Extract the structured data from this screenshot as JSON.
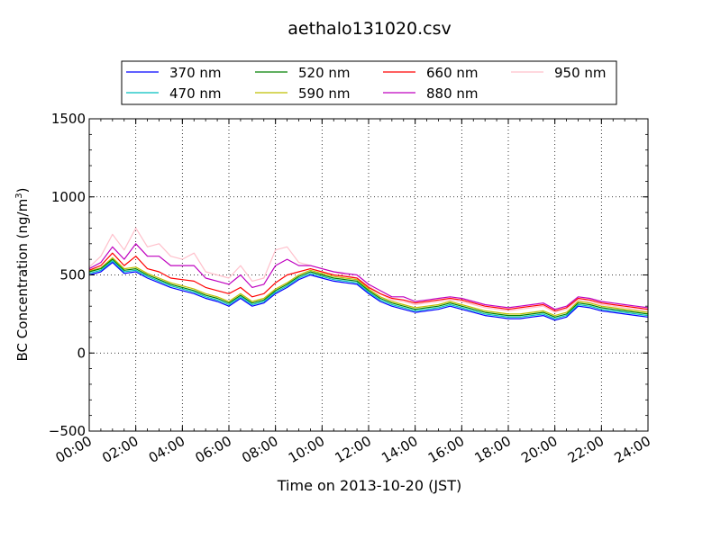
{
  "chart_data": {
    "type": "line",
    "title": "aethalo131020.csv",
    "xlabel": "Time on 2013-10-20 (JST)",
    "ylabel": "BC Concentration (ng/m",
    "ylabel_sup": "3",
    "ylabel_end": ")",
    "xlim": [
      "00:00",
      "24:00"
    ],
    "ylim": [
      -500,
      1500
    ],
    "x_ticks": [
      "00:00",
      "02:00",
      "04:00",
      "06:00",
      "08:00",
      "10:00",
      "12:00",
      "14:00",
      "16:00",
      "18:00",
      "20:00",
      "22:00",
      "24:00"
    ],
    "y_ticks": [
      "−500",
      "0",
      "500",
      "1000",
      "1500"
    ],
    "grid": true,
    "legend_position": "top, above plot",
    "x": [
      "00:00",
      "00:30",
      "01:00",
      "01:30",
      "02:00",
      "02:30",
      "03:00",
      "03:30",
      "04:00",
      "04:30",
      "05:00",
      "05:30",
      "06:00",
      "06:30",
      "07:00",
      "07:30",
      "08:00",
      "08:30",
      "09:00",
      "09:30",
      "10:00",
      "10:30",
      "11:00",
      "11:30",
      "12:00",
      "12:30",
      "13:00",
      "13:30",
      "14:00",
      "14:30",
      "15:00",
      "15:30",
      "16:00",
      "16:30",
      "17:00",
      "17:30",
      "18:00",
      "18:30",
      "19:00",
      "19:30",
      "20:00",
      "20:30",
      "21:00",
      "21:30",
      "22:00",
      "22:30",
      "23:00",
      "23:30",
      "24:00"
    ],
    "series": [
      {
        "name": "370 nm",
        "color": "#0000ff",
        "values": [
          500,
          520,
          580,
          510,
          520,
          480,
          450,
          420,
          400,
          380,
          350,
          330,
          300,
          350,
          300,
          320,
          380,
          420,
          470,
          500,
          480,
          460,
          450,
          440,
          380,
          330,
          300,
          280,
          260,
          270,
          280,
          300,
          280,
          260,
          240,
          230,
          220,
          220,
          230,
          240,
          210,
          230,
          300,
          290,
          270,
          260,
          250,
          240,
          230
        ]
      },
      {
        "name": "470 nm",
        "color": "#00bfbf",
        "values": [
          510,
          530,
          590,
          520,
          530,
          490,
          460,
          430,
          410,
          390,
          360,
          340,
          310,
          360,
          310,
          330,
          390,
          430,
          480,
          510,
          490,
          470,
          460,
          450,
          390,
          340,
          310,
          290,
          270,
          280,
          290,
          310,
          290,
          270,
          250,
          240,
          230,
          230,
          240,
          250,
          220,
          240,
          310,
          300,
          280,
          270,
          260,
          250,
          240
        ]
      },
      {
        "name": "520 nm",
        "color": "#008000",
        "values": [
          520,
          540,
          600,
          530,
          540,
          500,
          470,
          440,
          420,
          400,
          370,
          350,
          320,
          370,
          320,
          340,
          400,
          440,
          490,
          520,
          500,
          480,
          470,
          460,
          400,
          350,
          320,
          300,
          280,
          290,
          300,
          320,
          300,
          280,
          260,
          250,
          240,
          240,
          250,
          260,
          230,
          250,
          320,
          310,
          290,
          280,
          270,
          260,
          250
        ]
      },
      {
        "name": "590 nm",
        "color": "#bfbf00",
        "values": [
          525,
          545,
          610,
          540,
          550,
          510,
          480,
          450,
          430,
          410,
          380,
          360,
          330,
          380,
          330,
          350,
          410,
          450,
          500,
          530,
          510,
          490,
          480,
          470,
          410,
          360,
          330,
          310,
          290,
          300,
          310,
          330,
          310,
          290,
          270,
          260,
          250,
          250,
          260,
          270,
          240,
          260,
          330,
          320,
          300,
          290,
          280,
          270,
          260
        ]
      },
      {
        "name": "660 nm",
        "color": "#ff0000",
        "values": [
          530,
          560,
          640,
          560,
          620,
          540,
          520,
          480,
          470,
          460,
          420,
          400,
          380,
          420,
          360,
          380,
          450,
          500,
          520,
          540,
          520,
          500,
          490,
          480,
          420,
          380,
          350,
          340,
          320,
          330,
          340,
          350,
          340,
          320,
          300,
          290,
          280,
          290,
          300,
          310,
          270,
          290,
          350,
          340,
          320,
          310,
          300,
          290,
          280
        ]
      },
      {
        "name": "880 nm",
        "color": "#bf00bf",
        "values": [
          540,
          580,
          680,
          600,
          700,
          620,
          620,
          560,
          560,
          560,
          480,
          460,
          440,
          500,
          420,
          440,
          560,
          600,
          560,
          560,
          540,
          520,
          510,
          500,
          440,
          400,
          360,
          360,
          330,
          340,
          350,
          360,
          350,
          330,
          310,
          300,
          290,
          300,
          310,
          320,
          280,
          300,
          360,
          350,
          330,
          320,
          310,
          300,
          290
        ]
      },
      {
        "name": "950 nm",
        "color": "#ffc0cb",
        "values": [
          550,
          620,
          760,
          660,
          800,
          680,
          700,
          620,
          600,
          640,
          520,
          500,
          480,
          560,
          460,
          480,
          660,
          680,
          580,
          560,
          540,
          520,
          500,
          480,
          430,
          380,
          340,
          330,
          310,
          320,
          330,
          340,
          330,
          310,
          290,
          280,
          270,
          280,
          290,
          300,
          260,
          280,
          340,
          330,
          310,
          300,
          290,
          280,
          270
        ]
      }
    ]
  }
}
